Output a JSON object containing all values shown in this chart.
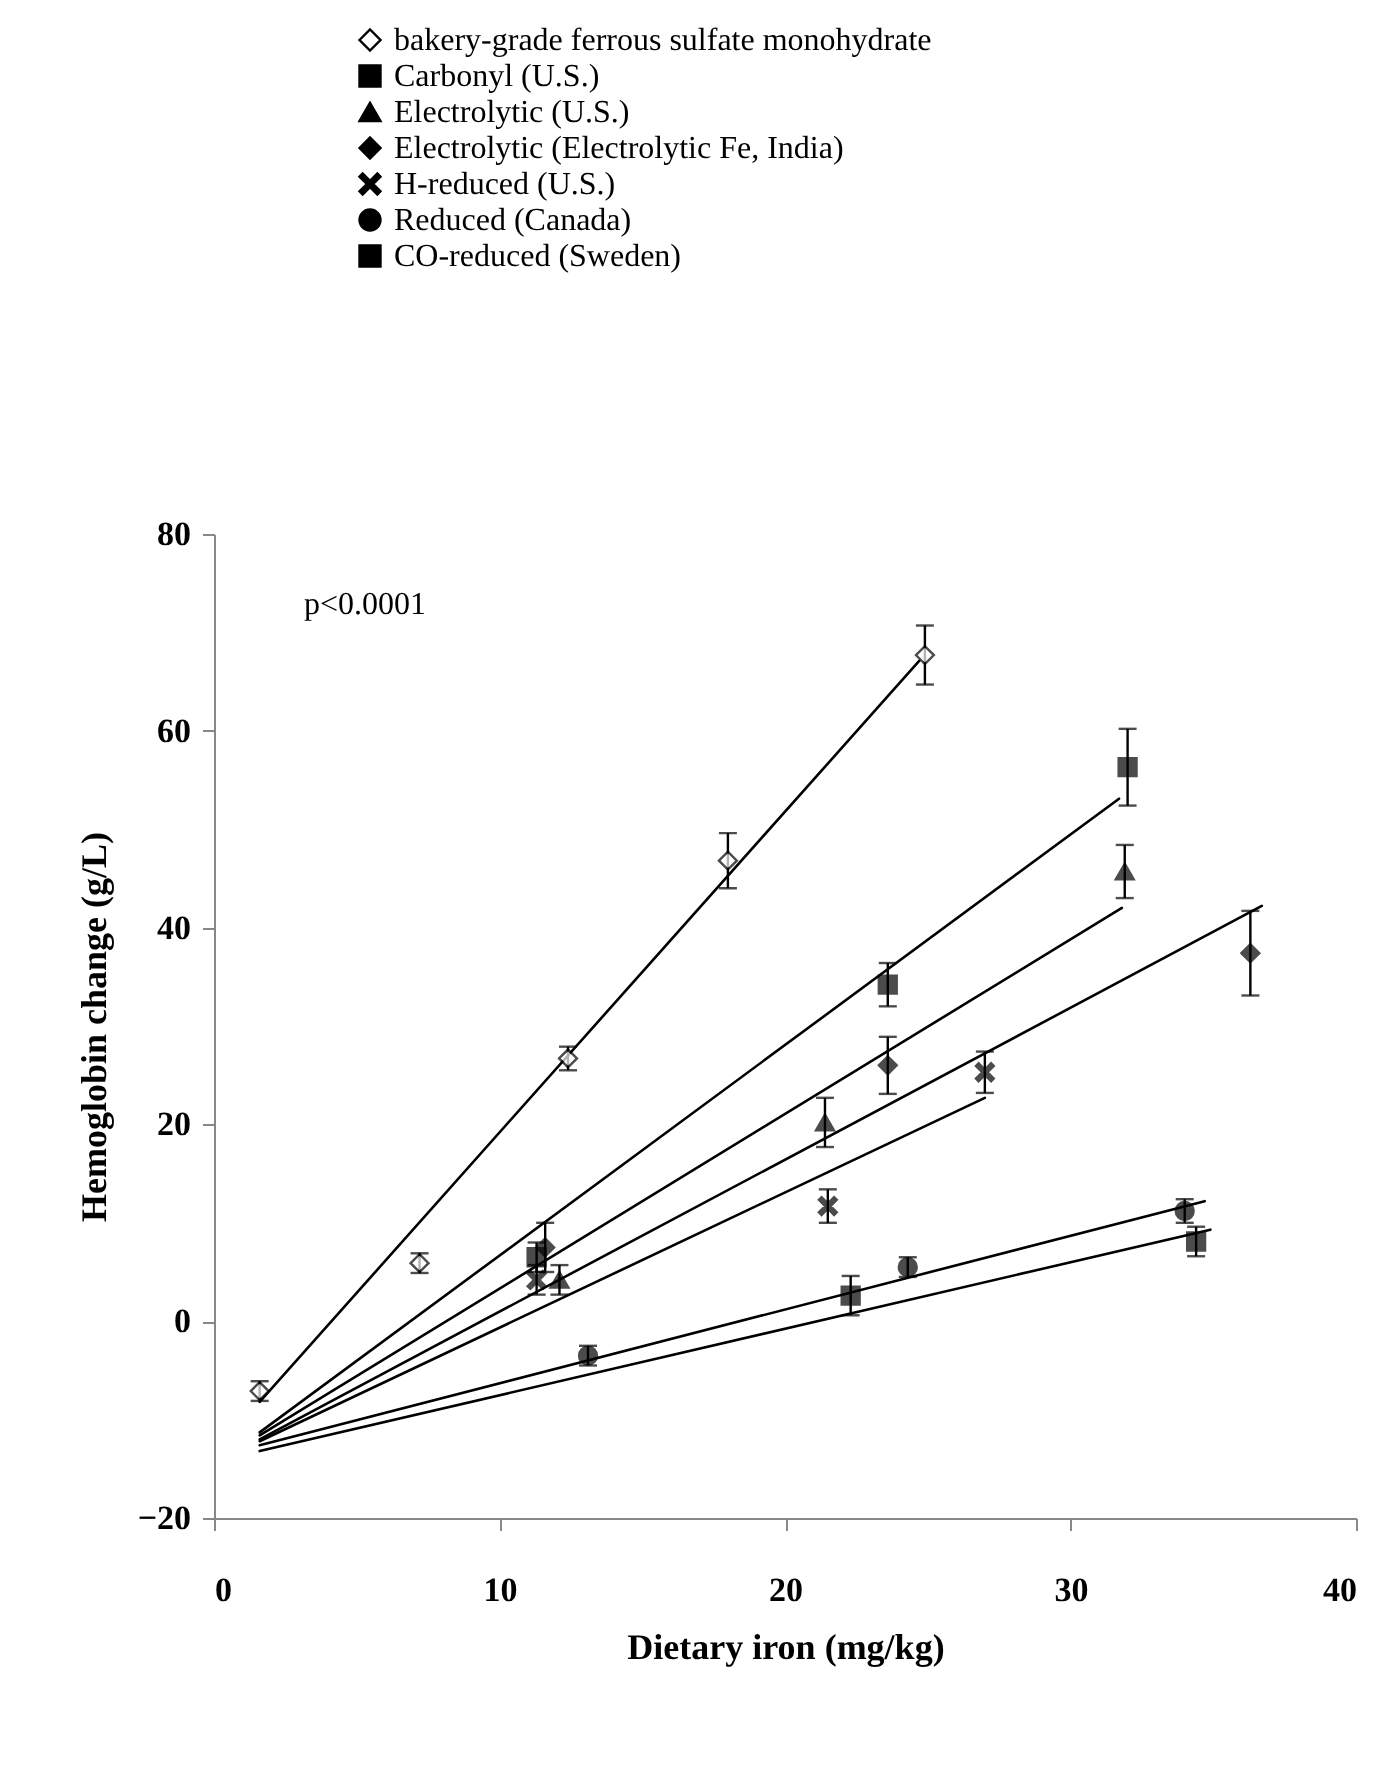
{
  "chart_data": {
    "type": "scatter",
    "xlabel": "Dietary iron (mg/kg)",
    "ylabel": "Hemoglobin change (g/L)",
    "annotations": [
      "p<0.0001"
    ],
    "xlim": [
      0,
      40
    ],
    "xticks": [
      0,
      10,
      20,
      30,
      40
    ],
    "ylim": [
      -20,
      80
    ],
    "yticks": [
      -20,
      0,
      20,
      40,
      60,
      80
    ],
    "legend": "top",
    "series": [
      {
        "name": "bakery-grade ferrous sulfate monohydrate",
        "marker": "diamond",
        "color": "#ffffff",
        "x": [
          1.6,
          7.2,
          12.4,
          18.0,
          24.9
        ],
        "values": [
          -7.1,
          5.9,
          26.7,
          46.8,
          67.7
        ],
        "errors": [
          1,
          1,
          1.2,
          2.8,
          3
        ]
      },
      {
        "name": "Carbonyl (U.S.)",
        "marker": "square",
        "color": "#000000",
        "x": [
          11.3,
          23.6,
          32.0
        ],
        "values": [
          6.5,
          34.2,
          56.3
        ],
        "errors": [
          1.5,
          2.2,
          3.9
        ]
      },
      {
        "name": "Electrolytic (U.S.)",
        "marker": "triangle",
        "color": "#000000",
        "x": [
          12.1,
          21.4,
          31.9
        ],
        "values": [
          4.2,
          20.2,
          45.7
        ],
        "errors": [
          1.5,
          2.5,
          2.7
        ]
      },
      {
        "name": "Electrolytic (Electrolytic Fe, India)",
        "marker": "diamond",
        "color": "#000000",
        "x": [
          11.6,
          23.6,
          36.3
        ],
        "values": [
          7.5,
          26.0,
          37.4
        ],
        "errors": [
          2.5,
          2.9,
          4.3
        ]
      },
      {
        "name": "H-reduced (U.S.)",
        "marker": "cross",
        "color": "#000000",
        "x": [
          11.3,
          21.5,
          27.0
        ],
        "values": [
          4.2,
          11.7,
          25.3
        ],
        "errors": [
          1.5,
          1.7,
          2.1
        ]
      },
      {
        "name": "Reduced (Canada)",
        "marker": "circle",
        "color": "#000000",
        "x": [
          13.1,
          24.3,
          34.0
        ],
        "values": [
          -3.5,
          5.5,
          11.2
        ],
        "errors": [
          1,
          1,
          1.2
        ]
      },
      {
        "name": "CO-reduced (Sweden)",
        "marker": "square",
        "color": "#000000",
        "x": [
          22.3,
          34.4
        ],
        "values": [
          2.6,
          8.1
        ],
        "errors": [
          2,
          1.5
        ]
      },
      {
        "type": "line",
        "color": "#000000",
        "x": [
          1.6,
          24.7
        ],
        "values": [
          -8.2,
          67.1
        ]
      },
      {
        "type": "line",
        "color": "#000000",
        "x": [
          1.6,
          31.7
        ],
        "values": [
          -11.3,
          53.1
        ]
      },
      {
        "type": "line",
        "color": "#000000",
        "x": [
          1.6,
          31.8
        ],
        "values": [
          -11.6,
          42.0
        ]
      },
      {
        "type": "line",
        "color": "#000000",
        "x": [
          1.6,
          36.7
        ],
        "values": [
          -12.0,
          42.2
        ]
      },
      {
        "type": "line",
        "color": "#000000",
        "x": [
          1.6,
          27.0
        ],
        "values": [
          -12.2,
          22.7
        ]
      },
      {
        "type": "line",
        "color": "#000000",
        "x": [
          1.6,
          34.7
        ],
        "values": [
          -12.6,
          12.2
        ]
      },
      {
        "type": "line",
        "color": "#000000",
        "x": [
          1.6,
          34.9
        ],
        "values": [
          -13.2,
          9.3
        ]
      }
    ]
  }
}
